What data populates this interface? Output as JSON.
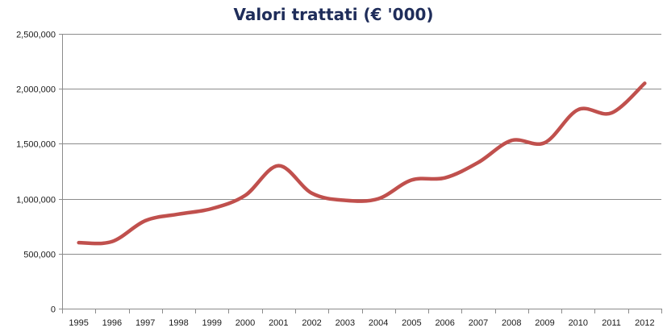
{
  "chart_data": {
    "type": "line",
    "title": "Valori trattati (€ '000)",
    "xlabel": "",
    "ylabel": "",
    "categories": [
      "1995",
      "1996",
      "1997",
      "1998",
      "1999",
      "2000",
      "2001",
      "2002",
      "2003",
      "2004",
      "2005",
      "2006",
      "2007",
      "2008",
      "2009",
      "2010",
      "2011",
      "2012"
    ],
    "series": [
      {
        "values": [
          600000,
          610000,
          800000,
          860000,
          910000,
          1030000,
          1300000,
          1050000,
          985000,
          1000000,
          1170000,
          1190000,
          1330000,
          1530000,
          1510000,
          1810000,
          1780000,
          2050000
        ]
      }
    ],
    "ylim": [
      0,
      2500000
    ],
    "yticks": [
      0,
      500000,
      1000000,
      1500000,
      2000000,
      2500000
    ],
    "ytick_labels": [
      "0",
      "500,000",
      "1,000,000",
      "1,500,000",
      "2,000,000",
      "2,500,000"
    ],
    "grid": true,
    "legend": "none",
    "smooth": true,
    "colors": {
      "line": "#c0504d",
      "grid": "#8c8c8c",
      "title": "#1f2d5a"
    }
  }
}
